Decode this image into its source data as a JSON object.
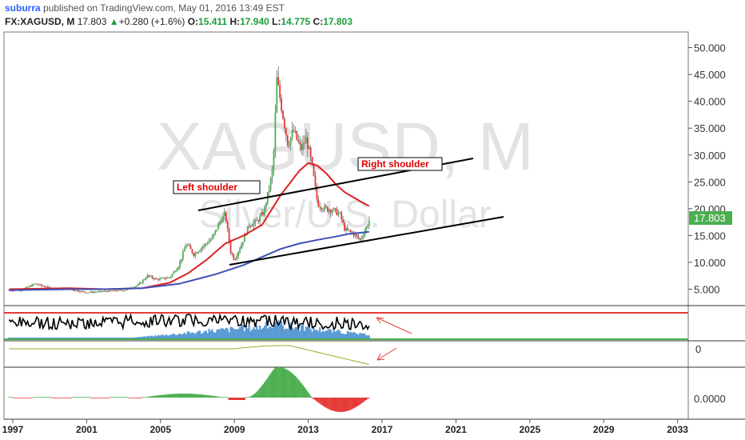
{
  "header": {
    "user": "suburra",
    "published_text": "published on TradingView.com, May 01, 2016 13:49 EST",
    "symbol": "FX:XAGUSD, M",
    "last": "17.803",
    "change_arrow": "▲",
    "change": "+0.280 (+1.6%)",
    "o_label": "O:",
    "o_value": "15.411",
    "h_label": "H:",
    "h_value": "17.940",
    "l_label": "L:",
    "l_value": "14.775",
    "c_label": "C:",
    "c_value": "17.803"
  },
  "watermark": {
    "symbol": "XAGUSD, M",
    "description": "Silver/U.S. Dollar"
  },
  "annotations": {
    "left_shoulder": "Left shoulder",
    "right_shoulder": "Right shoulder"
  },
  "price_badge": "17.803",
  "colors": {
    "up": "#4caf50",
    "down": "#e53935",
    "ma_fast": "#e02020",
    "ma_slow": "#3f51b5",
    "trendline": "#000000",
    "volume": "#5b9bd5",
    "badge": "#4caf50",
    "osc": "#9aaa22"
  },
  "chart_data": {
    "type": "line",
    "title": "",
    "xlabel": "",
    "ylabel": "",
    "x_ticks": [
      "1997",
      "2001",
      "2005",
      "2009",
      "2013",
      "2017",
      "2021",
      "2025",
      "2029",
      "2033"
    ],
    "y_ticks": [
      "5.000",
      "10.000",
      "15.000",
      "20.000",
      "25.000",
      "30.000",
      "35.000",
      "40.000",
      "45.000",
      "50.000"
    ],
    "xlim": [
      1996.8,
      2033.8
    ],
    "ylim": [
      1.5,
      52.5
    ],
    "series": [
      {
        "x": [
          1996.8,
          1997.5,
          1998.2,
          1999.0,
          2000.0,
          2001.0,
          2002.0,
          2003.0,
          2003.8,
          2004.3,
          2004.8,
          2005.5,
          2006.0,
          2006.4,
          2006.8,
          2007.3,
          2007.8,
          2008.2,
          2008.5,
          2008.8,
          2009.0,
          2009.4,
          2009.8,
          2010.2,
          2010.6,
          2010.9,
          2011.1,
          2011.3,
          2011.6,
          2011.9,
          2012.2,
          2012.6,
          2012.9,
          2013.2,
          2013.5,
          2013.9,
          2014.3,
          2014.7,
          2015.0,
          2015.4,
          2015.8,
          2016.0,
          2016.3
        ],
        "values": [
          4.8,
          4.9,
          6.0,
          5.2,
          5.0,
          4.4,
          4.6,
          4.8,
          5.8,
          7.5,
          6.8,
          7.2,
          9.5,
          13.5,
          11.5,
          13.0,
          14.5,
          17.5,
          19.0,
          12.0,
          10.5,
          13.5,
          17.0,
          17.5,
          19.5,
          24.0,
          28.0,
          44.0,
          38.0,
          32.0,
          34.5,
          31.0,
          33.0,
          28.0,
          21.0,
          20.0,
          19.8,
          19.0,
          16.0,
          15.5,
          14.2,
          15.4,
          17.8
        ]
      },
      {
        "x": [
          1996.8,
          2000.0,
          2002.0,
          2004.0,
          2005.5,
          2006.5,
          2007.5,
          2008.5,
          2009.5,
          2010.5,
          2011.5,
          2012.5,
          2013.0,
          2013.5,
          2014.0,
          2014.5,
          2015.0,
          2015.5,
          2016.0,
          2016.3
        ],
        "values": [
          5.0,
          5.2,
          5.0,
          5.2,
          6.2,
          8.0,
          10.5,
          13.5,
          15.0,
          17.0,
          22.5,
          27.0,
          28.5,
          28.0,
          26.5,
          24.5,
          23.0,
          22.0,
          21.0,
          20.5
        ]
      },
      {
        "x": [
          1996.8,
          1998.0,
          2000.0,
          2002.0,
          2004.0,
          2006.0,
          2008.0,
          2009.5,
          2010.5,
          2011.5,
          2012.5,
          2013.5,
          2014.5,
          2015.2,
          2015.8,
          2016.3
        ],
        "values": [
          4.8,
          4.9,
          5.0,
          5.0,
          5.2,
          6.0,
          7.8,
          9.5,
          11.0,
          12.5,
          13.5,
          14.2,
          14.8,
          15.3,
          15.5,
          15.7
        ]
      }
    ]
  }
}
